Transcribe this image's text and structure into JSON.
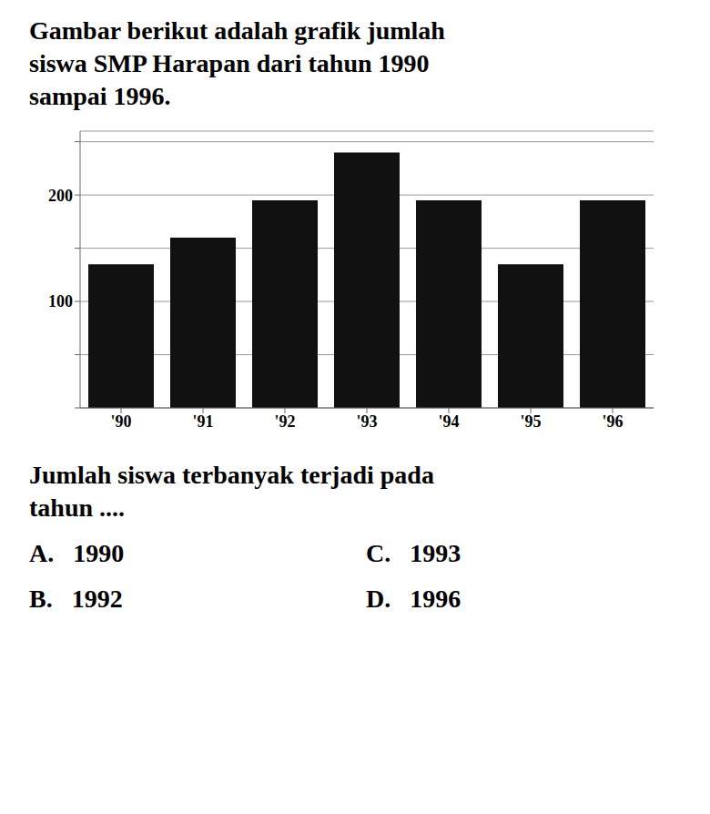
{
  "chart_data": {
    "type": "bar",
    "title": [
      "Gambar berikut adalah grafik jumlah",
      "siswa SMP Harapan dari tahun 1990",
      "sampai 1996."
    ],
    "categories": [
      "'90",
      "'91",
      "'92",
      "'93",
      "'94",
      "'95",
      "'96"
    ],
    "values": [
      135,
      160,
      195,
      240,
      195,
      135,
      195
    ],
    "color": "#111111",
    "ylim": [
      0,
      260
    ],
    "yticks": [
      {
        "value": 0,
        "label": null
      },
      {
        "value": 50,
        "label": null
      },
      100,
      {
        "value": 150,
        "label": null
      },
      200,
      {
        "value": 250,
        "label": null
      }
    ],
    "grid": true,
    "annotations": [
      "Jumlah siswa terbanyak terjadi pada",
      "tahun ....",
      "A.   1990",
      "B.   1992",
      "C.   1993",
      "D.   1996"
    ]
  }
}
